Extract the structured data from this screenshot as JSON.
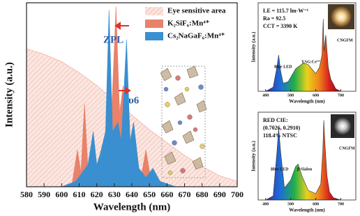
{
  "chart_data": [
    {
      "type": "area",
      "x_label": "Wavelength (nm)",
      "y_label": "Intensity (a.u.)",
      "xlim": [
        580,
        700
      ],
      "xticks": [
        580,
        590,
        600,
        610,
        620,
        630,
        640,
        650,
        660,
        670,
        680,
        690,
        700
      ],
      "ylim": [
        0,
        1
      ],
      "legend": "upper right",
      "series": [
        {
          "name": "Eye sensitive area",
          "color": "#f2b3a3",
          "x": [
            580,
            590,
            600,
            610,
            620,
            630,
            640,
            650,
            660,
            670,
            680,
            690,
            700
          ],
          "values": [
            0.75,
            0.72,
            0.68,
            0.62,
            0.55,
            0.47,
            0.39,
            0.31,
            0.24,
            0.17,
            0.11,
            0.06,
            0.03
          ]
        },
        {
          "name": "K₂SiF₆:Mn⁴⁺",
          "color": "#e8826b",
          "x": [
            600,
            606,
            609,
            611,
            613,
            615,
            618,
            624,
            628,
            631,
            633,
            635,
            637,
            640,
            645,
            648,
            651,
            655,
            660
          ],
          "values": [
            0,
            0.02,
            0.2,
            0.08,
            0.45,
            0.1,
            0.03,
            0.05,
            0.3,
            0.98,
            0.4,
            0.55,
            0.15,
            0.05,
            0.04,
            0.2,
            0.03,
            0.01,
            0
          ]
        },
        {
          "name": "Cs₂NaGaF₆:Mn⁴⁺",
          "color": "#3a8fd0",
          "x": [
            600,
            608,
            612,
            615,
            618,
            620,
            622,
            625,
            627,
            629,
            632,
            634,
            637,
            639,
            641,
            644,
            648,
            652,
            656,
            665
          ],
          "values": [
            0,
            0.03,
            0.08,
            0.12,
            0.3,
            0.12,
            0.18,
            0.3,
            0.96,
            0.3,
            0.35,
            0.25,
            0.8,
            0.25,
            0.35,
            0.1,
            0.05,
            0.1,
            0.03,
            0
          ]
        }
      ],
      "annotations": [
        "ZPL",
        "υ6"
      ]
    },
    {
      "type": "area",
      "x_label": "Wavelength (nm)",
      "y_label": "Intensity (a.u.)",
      "xlim": [
        370,
        760
      ],
      "xticks": [
        400,
        500,
        600,
        700
      ],
      "ylim": [
        0,
        1.1
      ],
      "series": [
        {
          "x": [
            400,
            430,
            445,
            452,
            460,
            470,
            490,
            520,
            550,
            570,
            600,
            615,
            625,
            630,
            633,
            640,
            650,
            660,
            680,
            700
          ],
          "values": [
            0,
            0.05,
            0.3,
            0.45,
            0.25,
            0.1,
            0.12,
            0.28,
            0.35,
            0.33,
            0.22,
            0.3,
            0.45,
            0.9,
            0.5,
            0.7,
            0.3,
            0.15,
            0.03,
            0
          ]
        }
      ],
      "annotations": [
        "LE = 115.7 lm·W⁻¹",
        "Ra = 92.5",
        "CCT = 3390 K",
        "Blue LED",
        "YAG:Ce³⁺",
        "CNGFM"
      ]
    },
    {
      "type": "area",
      "x_label": "Wavelength (nm)",
      "y_label": "Intensity (a.u.)",
      "xlim": [
        370,
        760
      ],
      "xticks": [
        400,
        500,
        600,
        700
      ],
      "ylim": [
        0,
        1.1
      ],
      "series": [
        {
          "x": [
            400,
            430,
            445,
            452,
            460,
            475,
            500,
            520,
            530,
            545,
            570,
            600,
            620,
            628,
            632,
            637,
            645,
            655,
            670,
            700
          ],
          "values": [
            0,
            0.05,
            0.6,
            0.9,
            0.6,
            0.15,
            0.25,
            0.42,
            0.45,
            0.3,
            0.12,
            0.08,
            0.2,
            0.6,
            1.0,
            0.7,
            0.3,
            0.1,
            0.03,
            0
          ]
        }
      ],
      "annotations": [
        "RED CIE:",
        "(0.7026, 0.2910)",
        "118.4% NTSC",
        "Blue LED",
        "β-Sialon",
        "CNGFM"
      ]
    }
  ]
}
